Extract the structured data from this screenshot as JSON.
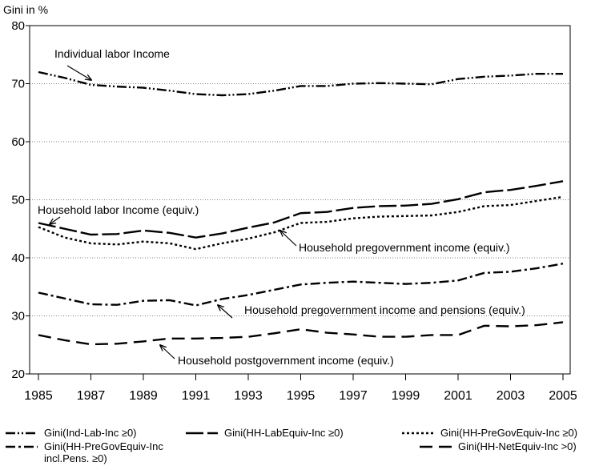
{
  "chart_data": {
    "type": "line",
    "y_label": "Gini in %",
    "x": [
      1985,
      1986,
      1987,
      1988,
      1989,
      1990,
      1991,
      1992,
      1993,
      1994,
      1995,
      1996,
      1997,
      1998,
      1999,
      2000,
      2001,
      2002,
      2003,
      2004,
      2005
    ],
    "xlim": [
      1984.664,
      2005.275
    ],
    "xticks": [
      1985,
      1987,
      1989,
      1991,
      1993,
      1995,
      1997,
      1999,
      2001,
      2003,
      2005
    ],
    "ylim": [
      20,
      80
    ],
    "yticks": [
      20,
      30,
      40,
      50,
      60,
      70,
      80
    ],
    "grid": true,
    "series": [
      {
        "name": "Gini(Ind-Lab-Inc ≥0)",
        "color": "#000000",
        "dash": "dash-dot-dot",
        "values": [
          72.0,
          71.0,
          69.8,
          69.5,
          69.3,
          68.8,
          68.2,
          68.0,
          68.2,
          68.8,
          69.6,
          69.6,
          70.0,
          70.1,
          70.0,
          69.9,
          70.8,
          71.2,
          71.4,
          71.7,
          71.7
        ]
      },
      {
        "name": "Gini(HH-LabEquiv-Inc ≥0)",
        "color": "#000000",
        "dash": "long-dash",
        "values": [
          46.0,
          45.0,
          44.0,
          44.1,
          44.7,
          44.3,
          43.5,
          44.2,
          45.2,
          46.1,
          47.7,
          47.9,
          48.6,
          48.9,
          49.0,
          49.3,
          50.1,
          51.3,
          51.7,
          52.4,
          53.2
        ]
      },
      {
        "name": "Gini(HH-PreGovEquiv-Inc ≥0)",
        "color": "#000000",
        "dash": "dot",
        "values": [
          45.3,
          43.5,
          42.5,
          42.3,
          42.8,
          42.5,
          41.5,
          42.5,
          43.3,
          44.4,
          46.0,
          46.2,
          46.8,
          47.1,
          47.2,
          47.3,
          47.9,
          48.9,
          49.1,
          49.8,
          50.5
        ]
      },
      {
        "name": "Gini(HH-PreGovEquiv-Inc incl.Pens. ≥0)",
        "color": "#000000",
        "dash": "dash-dot",
        "values": [
          34.0,
          33.0,
          32.0,
          31.9,
          32.6,
          32.7,
          31.8,
          32.9,
          33.6,
          34.5,
          35.4,
          35.7,
          35.9,
          35.7,
          35.5,
          35.7,
          36.1,
          37.4,
          37.6,
          38.2,
          39.0
        ]
      },
      {
        "name": "Gini(HH-NetEquiv-Inc >0)",
        "color": "#000000",
        "dash": "dash",
        "values": [
          26.7,
          25.8,
          25.1,
          25.2,
          25.6,
          26.1,
          26.1,
          26.2,
          26.4,
          27.0,
          27.7,
          27.1,
          26.8,
          26.4,
          26.4,
          26.7,
          26.7,
          28.3,
          28.2,
          28.4,
          28.9
        ]
      }
    ],
    "annotations": [
      "Individual labor Income",
      "Household labor Income (equiv.)",
      "Household pregovernment income (equiv.)",
      "Household pregovernment income and pensions (equiv.)",
      "Household postgovernment income (equiv.)"
    ]
  }
}
